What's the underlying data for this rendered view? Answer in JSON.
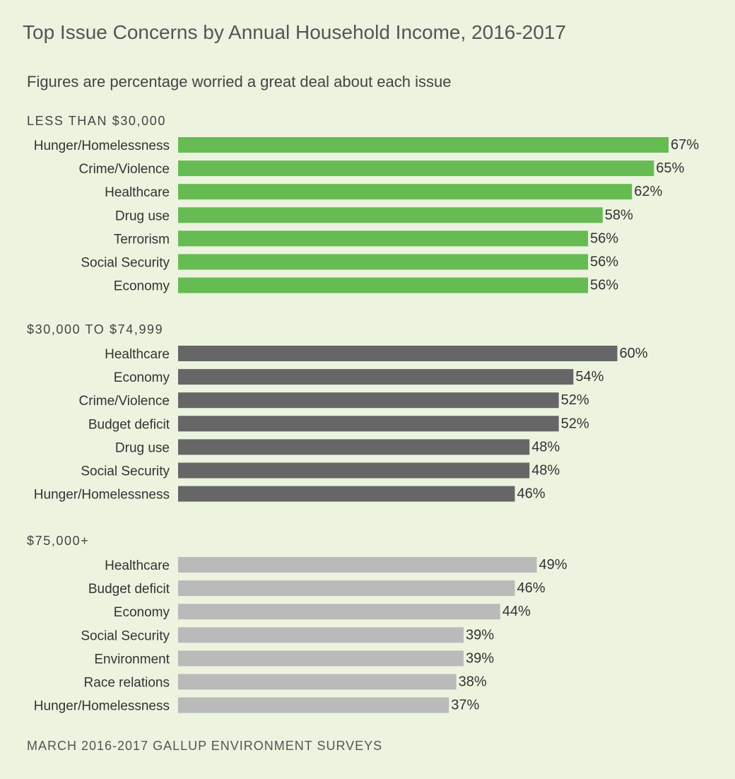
{
  "title": "Top Issue Concerns by Annual Household Income, 2016-2017",
  "subtitle": "Figures are percentage worried a great deal about each issue",
  "footer": "MARCH 2016-2017 GALLUP ENVIRONMENT SURVEYS",
  "chart_data": [
    {
      "type": "bar",
      "orientation": "horizontal",
      "title": "LESS THAN $30,000",
      "color": "#66bb52",
      "categories": [
        "Hunger/Homelessness",
        "Crime/Violence",
        "Healthcare",
        "Drug use",
        "Terrorism",
        "Social Security",
        "Economy"
      ],
      "values": [
        67,
        65,
        62,
        58,
        56,
        56,
        56
      ],
      "unit": "%"
    },
    {
      "type": "bar",
      "orientation": "horizontal",
      "title": "$30,000 TO $74,999",
      "color": "#666666",
      "categories": [
        "Healthcare",
        "Economy",
        "Crime/Violence",
        "Budget deficit",
        "Drug use",
        "Social Security",
        "Hunger/Homelessness"
      ],
      "values": [
        60,
        54,
        52,
        52,
        48,
        48,
        46
      ],
      "unit": "%"
    },
    {
      "type": "bar",
      "orientation": "horizontal",
      "title": "$75,000+",
      "color": "#bababa",
      "categories": [
        "Healthcare",
        "Budget deficit",
        "Economy",
        "Social Security",
        "Environment",
        "Race relations",
        "Hunger/Homelessness"
      ],
      "values": [
        49,
        46,
        44,
        39,
        39,
        38,
        37
      ],
      "unit": "%"
    }
  ]
}
